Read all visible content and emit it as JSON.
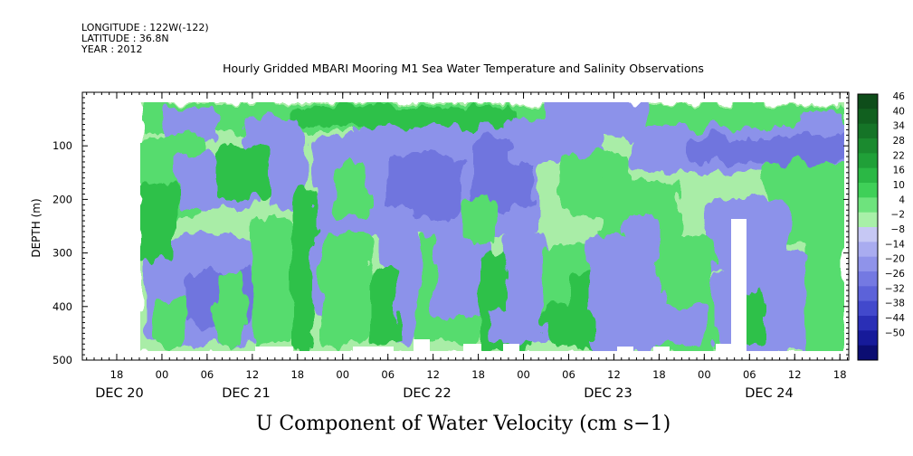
{
  "header": {
    "longitude": "LONGITUDE : 122W(-122)",
    "latitude": "LATITUDE : 36.8N",
    "year": "YEAR : 2012",
    "title": "Hourly Gridded MBARI Mooring M1 Sea Water Temperature and Salinity Observations"
  },
  "chart_data": {
    "type": "heatmap",
    "title": "Hourly Gridded MBARI Mooring M1 Sea Water Temperature and Salinity Observations",
    "xlabel": "U Component of Water Velocity (cm s−1)",
    "ylabel": "DEPTH (m)",
    "y_range": [
      500,
      0
    ],
    "y_ticks": [
      100,
      200,
      300,
      400,
      500
    ],
    "y_tick_labels": [
      "100",
      "200",
      "300",
      "400",
      "500"
    ],
    "hour_ticks": [
      "18",
      "00",
      "06",
      "12",
      "18",
      "00",
      "06",
      "12",
      "18",
      "00",
      "06",
      "12",
      "18",
      "00",
      "06",
      "12",
      "18"
    ],
    "date_labels": [
      "DEC 20",
      "DEC 21",
      "DEC 22",
      "DEC 23",
      "DEC 24"
    ],
    "colorbar_levels": [
      "46",
      "40",
      "34",
      "28",
      "22",
      "16",
      "10",
      "4",
      "−2",
      "−8",
      "−14",
      "−20",
      "−26",
      "−32",
      "−38",
      "−44",
      "−50"
    ],
    "colorbar_colors": [
      "#0e4d1a",
      "#11601f",
      "#157427",
      "#1b8a2f",
      "#20a038",
      "#2bb845",
      "#3fd058",
      "#6ee37d",
      "#a8f0a8",
      "#c6c8f4",
      "#a9acf0",
      "#8f93ea",
      "#7479e2",
      "#5c62d9",
      "#4249cc",
      "#2a2fb6",
      "#161a9a",
      "#0b0d72"
    ],
    "columns": [
      {
        "start": "DEC 20 21:00",
        "profile": "green above 150 m; blue 250-450 m"
      },
      {
        "start": "DEC 21 14:00",
        "profile": "green columns dominate 0-500 m"
      },
      {
        "start": "DEC 21 22:00",
        "profile": "blue 100-300 m"
      },
      {
        "start": "DEC 22 15:00",
        "profile": "blue 100-250 m, green below 300 m"
      },
      {
        "start": "DEC 23 04:00",
        "profile": "green 150-500 m"
      },
      {
        "start": "DEC 23 12:00",
        "profile": "blue 300-450 m"
      },
      {
        "start": "DEC 23 22:00",
        "profile": "blue 50-100 m band"
      },
      {
        "start": "DEC 24 06:00",
        "profile": "green 150-450 m"
      }
    ]
  }
}
